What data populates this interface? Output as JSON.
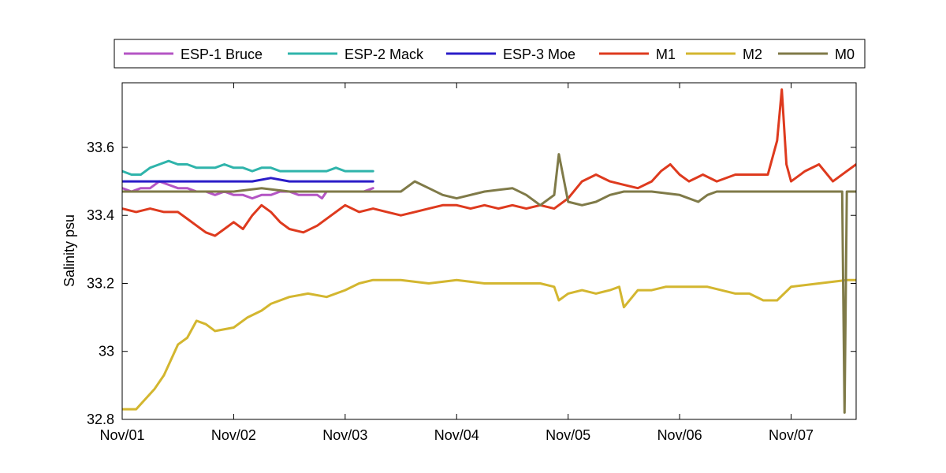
{
  "chart_data": {
    "type": "line",
    "title": "",
    "xlabel": "",
    "ylabel": "Salinity psu",
    "x_ticks": [
      "Nov/01",
      "Nov/02",
      "Nov/03",
      "Nov/04",
      "Nov/05",
      "Nov/06",
      "Nov/07"
    ],
    "y_ticks": [
      "32.8",
      "33",
      "33.2",
      "33.4",
      "33.6"
    ],
    "xlim": [
      "Nov/01 00:00",
      "Nov/07 14:00"
    ],
    "ylim": [
      32.8,
      33.79
    ],
    "grid": false,
    "legend_position": "top, outside plot (horizontal)",
    "series": [
      {
        "name": "ESP-1 Bruce",
        "color": "#b455c4",
        "x": [
          "Nov/01 00:00",
          "Nov/01 02:00",
          "Nov/01 04:00",
          "Nov/01 06:00",
          "Nov/01 08:00",
          "Nov/01 10:00",
          "Nov/01 12:00",
          "Nov/01 14:00",
          "Nov/01 16:00",
          "Nov/01 18:00",
          "Nov/01 20:00",
          "Nov/01 22:00",
          "Nov/02 00:00",
          "Nov/02 02:00",
          "Nov/02 04:00",
          "Nov/02 06:00",
          "Nov/02 08:00",
          "Nov/02 10:00",
          "Nov/02 12:00",
          "Nov/02 14:00",
          "Nov/02 16:00",
          "Nov/02 18:00",
          "Nov/02 19:00",
          "Nov/02 20:00",
          "Nov/02 22:00",
          "Nov/03 00:00",
          "Nov/03 02:00",
          "Nov/03 04:00",
          "Nov/03 06:00"
        ],
        "y": [
          33.48,
          33.47,
          33.48,
          33.48,
          33.5,
          33.49,
          33.48,
          33.48,
          33.47,
          33.47,
          33.46,
          33.47,
          33.46,
          33.46,
          33.45,
          33.46,
          33.46,
          33.47,
          33.47,
          33.46,
          33.46,
          33.46,
          33.45,
          33.47,
          33.47,
          33.47,
          33.47,
          33.47,
          33.48
        ]
      },
      {
        "name": "ESP-2 Mack",
        "color": "#2fb4ab",
        "x": [
          "Nov/01 00:00",
          "Nov/01 02:00",
          "Nov/01 04:00",
          "Nov/01 06:00",
          "Nov/01 08:00",
          "Nov/01 10:00",
          "Nov/01 12:00",
          "Nov/01 14:00",
          "Nov/01 16:00",
          "Nov/01 18:00",
          "Nov/01 20:00",
          "Nov/01 22:00",
          "Nov/02 00:00",
          "Nov/02 02:00",
          "Nov/02 04:00",
          "Nov/02 06:00",
          "Nov/02 08:00",
          "Nov/02 10:00",
          "Nov/02 12:00",
          "Nov/02 14:00",
          "Nov/02 16:00",
          "Nov/02 18:00",
          "Nov/02 20:00",
          "Nov/02 22:00",
          "Nov/03 00:00",
          "Nov/03 02:00",
          "Nov/03 04:00",
          "Nov/03 06:00"
        ],
        "y": [
          33.53,
          33.52,
          33.52,
          33.54,
          33.55,
          33.56,
          33.55,
          33.55,
          33.54,
          33.54,
          33.54,
          33.55,
          33.54,
          33.54,
          33.53,
          33.54,
          33.54,
          33.53,
          33.53,
          33.53,
          33.53,
          33.53,
          33.53,
          33.54,
          33.53,
          33.53,
          33.53,
          33.53
        ]
      },
      {
        "name": "ESP-3 Moe",
        "color": "#2a1cc8",
        "x": [
          "Nov/01 00:00",
          "Nov/01 04:00",
          "Nov/01 08:00",
          "Nov/01 12:00",
          "Nov/01 16:00",
          "Nov/01 20:00",
          "Nov/02 00:00",
          "Nov/02 04:00",
          "Nov/02 08:00",
          "Nov/02 12:00",
          "Nov/02 16:00",
          "Nov/02 20:00",
          "Nov/03 00:00",
          "Nov/03 04:00",
          "Nov/03 06:00"
        ],
        "y": [
          33.5,
          33.5,
          33.5,
          33.5,
          33.5,
          33.5,
          33.5,
          33.5,
          33.51,
          33.5,
          33.5,
          33.5,
          33.5,
          33.5,
          33.5
        ]
      },
      {
        "name": "M1",
        "color": "#de3a1e",
        "x": [
          "Nov/01 00:00",
          "Nov/01 03:00",
          "Nov/01 06:00",
          "Nov/01 09:00",
          "Nov/01 12:00",
          "Nov/01 14:00",
          "Nov/01 16:00",
          "Nov/01 18:00",
          "Nov/01 20:00",
          "Nov/01 22:00",
          "Nov/02 00:00",
          "Nov/02 02:00",
          "Nov/02 04:00",
          "Nov/02 06:00",
          "Nov/02 08:00",
          "Nov/02 10:00",
          "Nov/02 12:00",
          "Nov/02 15:00",
          "Nov/02 18:00",
          "Nov/02 21:00",
          "Nov/03 00:00",
          "Nov/03 03:00",
          "Nov/03 06:00",
          "Nov/03 09:00",
          "Nov/03 12:00",
          "Nov/03 15:00",
          "Nov/03 18:00",
          "Nov/03 21:00",
          "Nov/04 00:00",
          "Nov/04 03:00",
          "Nov/04 06:00",
          "Nov/04 09:00",
          "Nov/04 12:00",
          "Nov/04 15:00",
          "Nov/04 18:00",
          "Nov/04 21:00",
          "Nov/05 00:00",
          "Nov/05 03:00",
          "Nov/05 06:00",
          "Nov/05 09:00",
          "Nov/05 12:00",
          "Nov/05 15:00",
          "Nov/05 18:00",
          "Nov/05 20:00",
          "Nov/05 22:00",
          "Nov/06 00:00",
          "Nov/06 02:00",
          "Nov/06 05:00",
          "Nov/06 08:00",
          "Nov/06 12:00",
          "Nov/06 16:00",
          "Nov/06 19:00",
          "Nov/06 21:00",
          "Nov/06 22:00",
          "Nov/06 23:00",
          "Nov/07 00:00",
          "Nov/07 03:00",
          "Nov/07 06:00",
          "Nov/07 09:00",
          "Nov/07 12:00",
          "Nov/07 14:00"
        ],
        "y": [
          33.42,
          33.41,
          33.42,
          33.41,
          33.41,
          33.39,
          33.37,
          33.35,
          33.34,
          33.36,
          33.38,
          33.36,
          33.4,
          33.43,
          33.41,
          33.38,
          33.36,
          33.35,
          33.37,
          33.4,
          33.43,
          33.41,
          33.42,
          33.41,
          33.4,
          33.41,
          33.42,
          33.43,
          33.43,
          33.42,
          33.43,
          33.42,
          33.43,
          33.42,
          33.43,
          33.42,
          33.45,
          33.5,
          33.52,
          33.5,
          33.49,
          33.48,
          33.5,
          33.53,
          33.55,
          33.52,
          33.5,
          33.52,
          33.5,
          33.52,
          33.52,
          33.52,
          33.62,
          33.77,
          33.55,
          33.5,
          33.53,
          33.55,
          33.5,
          33.53,
          33.55
        ]
      },
      {
        "name": "M2",
        "color": "#d3b62f",
        "x": [
          "Nov/01 00:00",
          "Nov/01 03:00",
          "Nov/01 05:00",
          "Nov/01 07:00",
          "Nov/01 09:00",
          "Nov/01 10:00",
          "Nov/01 12:00",
          "Nov/01 14:00",
          "Nov/01 16:00",
          "Nov/01 18:00",
          "Nov/01 20:00",
          "Nov/02 00:00",
          "Nov/02 03:00",
          "Nov/02 06:00",
          "Nov/02 08:00",
          "Nov/02 12:00",
          "Nov/02 16:00",
          "Nov/02 20:00",
          "Nov/03 00:00",
          "Nov/03 03:00",
          "Nov/03 06:00",
          "Nov/03 12:00",
          "Nov/03 18:00",
          "Nov/04 00:00",
          "Nov/04 06:00",
          "Nov/04 12:00",
          "Nov/04 18:00",
          "Nov/04 21:00",
          "Nov/04 22:00",
          "Nov/05 00:00",
          "Nov/05 03:00",
          "Nov/05 06:00",
          "Nov/05 09:00",
          "Nov/05 11:00",
          "Nov/05 12:00",
          "Nov/05 15:00",
          "Nov/05 18:00",
          "Nov/05 21:00",
          "Nov/06 00:00",
          "Nov/06 06:00",
          "Nov/06 12:00",
          "Nov/06 15:00",
          "Nov/06 18:00",
          "Nov/06 21:00",
          "Nov/07 00:00",
          "Nov/07 06:00",
          "Nov/07 12:00",
          "Nov/07 14:00"
        ],
        "y": [
          32.83,
          32.83,
          32.86,
          32.89,
          32.93,
          32.96,
          33.02,
          33.04,
          33.09,
          33.08,
          33.06,
          33.07,
          33.1,
          33.12,
          33.14,
          33.16,
          33.17,
          33.16,
          33.18,
          33.2,
          33.21,
          33.21,
          33.2,
          33.21,
          33.2,
          33.2,
          33.2,
          33.19,
          33.15,
          33.17,
          33.18,
          33.17,
          33.18,
          33.19,
          33.13,
          33.18,
          33.18,
          33.19,
          33.19,
          33.19,
          33.17,
          33.17,
          33.15,
          33.15,
          33.19,
          33.2,
          33.21,
          33.21
        ]
      },
      {
        "name": "M0",
        "color": "#7f7a48",
        "x": [
          "Nov/01 00:00",
          "Nov/01 06:00",
          "Nov/01 12:00",
          "Nov/01 18:00",
          "Nov/02 00:00",
          "Nov/02 06:00",
          "Nov/02 12:00",
          "Nov/02 18:00",
          "Nov/03 00:00",
          "Nov/03 06:00",
          "Nov/03 12:00",
          "Nov/03 15:00",
          "Nov/03 18:00",
          "Nov/03 21:00",
          "Nov/04 00:00",
          "Nov/04 06:00",
          "Nov/04 12:00",
          "Nov/04 15:00",
          "Nov/04 18:00",
          "Nov/04 21:00",
          "Nov/04 22:00",
          "Nov/05 00:00",
          "Nov/05 03:00",
          "Nov/05 06:00",
          "Nov/05 09:00",
          "Nov/05 12:00",
          "Nov/05 18:00",
          "Nov/06 00:00",
          "Nov/06 04:00",
          "Nov/06 06:00",
          "Nov/06 08:00",
          "Nov/06 12:00",
          "Nov/06 18:00",
          "Nov/06 21:00",
          "Nov/07 00:00",
          "Nov/07 06:00",
          "Nov/07 10:00",
          "Nov/07 11:00",
          "Nov/07 11:30",
          "Nov/07 12:00",
          "Nov/07 14:00"
        ],
        "y": [
          33.47,
          33.47,
          33.47,
          33.47,
          33.47,
          33.48,
          33.47,
          33.47,
          33.47,
          33.47,
          33.47,
          33.5,
          33.48,
          33.46,
          33.45,
          33.47,
          33.48,
          33.46,
          33.43,
          33.46,
          33.58,
          33.44,
          33.43,
          33.44,
          33.46,
          33.47,
          33.47,
          33.46,
          33.44,
          33.46,
          33.47,
          33.47,
          33.47,
          33.47,
          33.47,
          33.47,
          33.47,
          33.47,
          32.82,
          33.47,
          33.47
        ]
      }
    ]
  }
}
